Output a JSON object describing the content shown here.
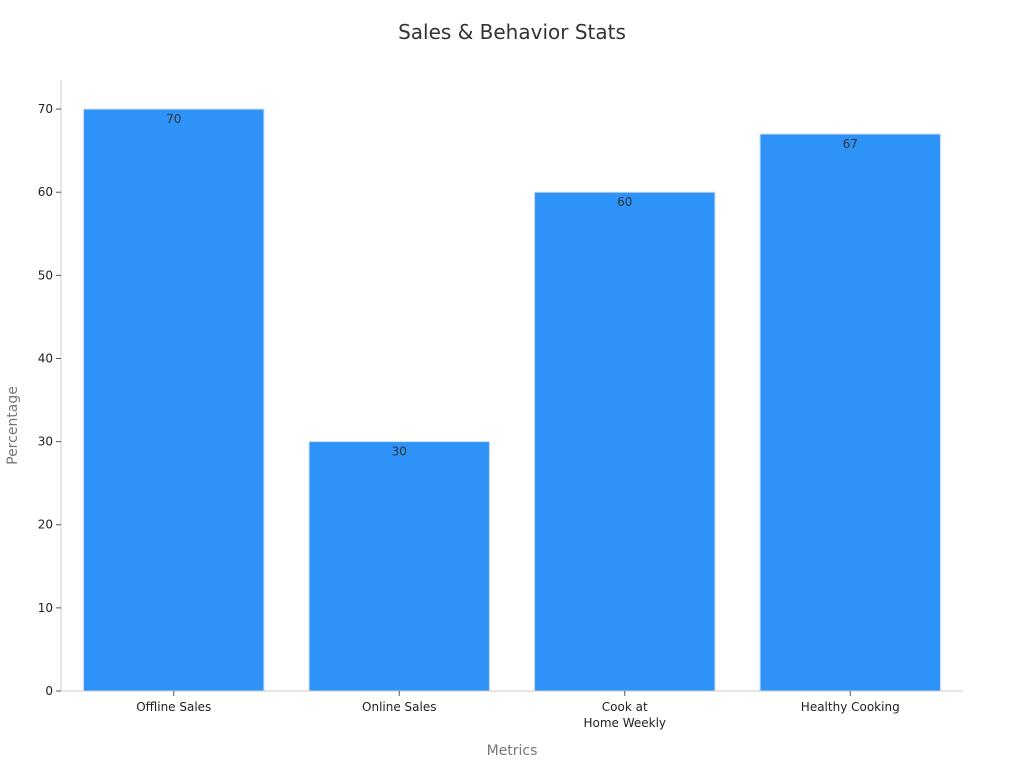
{
  "chart_data": {
    "type": "bar",
    "title": "Sales & Behavior Stats",
    "xlabel": "Metrics",
    "ylabel": "Percentage",
    "categories": [
      "Offline Sales",
      "Online Sales",
      "Cook at Home Weekly",
      "Healthy Cooking"
    ],
    "category_label_lines": [
      [
        "Offline Sales"
      ],
      [
        "Online Sales"
      ],
      [
        "Cook at",
        "Home Weekly"
      ],
      [
        "Healthy Cooking"
      ]
    ],
    "values": [
      70,
      30,
      60,
      67
    ],
    "ylim": [
      0,
      73.5
    ],
    "yticks": [
      0,
      10,
      20,
      30,
      40,
      50,
      60,
      70
    ],
    "grid": false,
    "legend": "none",
    "bar_color": "#2e93f8",
    "bar_edge_color": "#c8dcf0",
    "axis_color": "#cccccc"
  }
}
